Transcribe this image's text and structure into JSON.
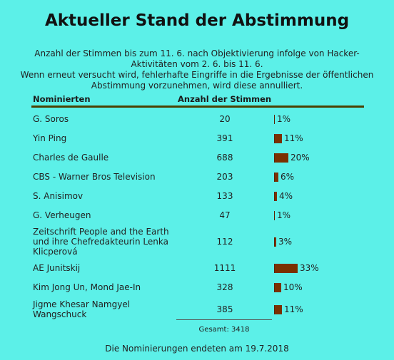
{
  "title": "Aktueller Stand der Abstimmung",
  "intro_lines": [
    "Anzahl der Stimmen bis zum 11. 6. nach Objektivierung infolge von Hacker-",
    "Aktivitäten vom 2. 6. bis 11. 6.",
    "Wenn erneut versucht wird, fehlerhafte Eingriffe in die Ergebnisse der öffentlichen",
    "Abstimmung vorzunehmen, wird diese annulliert."
  ],
  "columns": {
    "name": "Nominierten",
    "count": "Anzahl der Stimmen"
  },
  "rows": [
    {
      "name": "G. Soros",
      "votes": "20",
      "percent": "1%",
      "share": 0.01
    },
    {
      "name": "Yin Ping",
      "votes": "391",
      "percent": "11%",
      "share": 0.11
    },
    {
      "name": "Charles de Gaulle",
      "votes": "688",
      "percent": "20%",
      "share": 0.2
    },
    {
      "name": "CBS - Warner Bros Television",
      "votes": "203",
      "percent": "6%",
      "share": 0.06
    },
    {
      "name": "S. Anisimov",
      "votes": "133",
      "percent": "4%",
      "share": 0.04
    },
    {
      "name": "G. Verheugen",
      "votes": "47",
      "percent": "1%",
      "share": 0.01
    },
    {
      "name": "Zeitschrift People and the Earth und ihre Chefredakteurin Lenka Klicperová",
      "votes": "112",
      "percent": "3%",
      "share": 0.03
    },
    {
      "name": "AE Junitskij",
      "votes": "1111",
      "percent": "33%",
      "share": 0.33
    },
    {
      "name": "Kim Jong Un, Mond Jae-In",
      "votes": "328",
      "percent": "10%",
      "share": 0.1
    },
    {
      "name": "Jigme Khesar Namgyel Wangschuck",
      "votes": "385",
      "percent": "11%",
      "share": 0.11
    }
  ],
  "total": "Gesamt: 3418",
  "footer": "Die Nominierungen endeten am 19.7.2018",
  "colors": {
    "background": "#5cf0e8",
    "bar": "#7b3000",
    "rule": "#4b4000"
  }
}
